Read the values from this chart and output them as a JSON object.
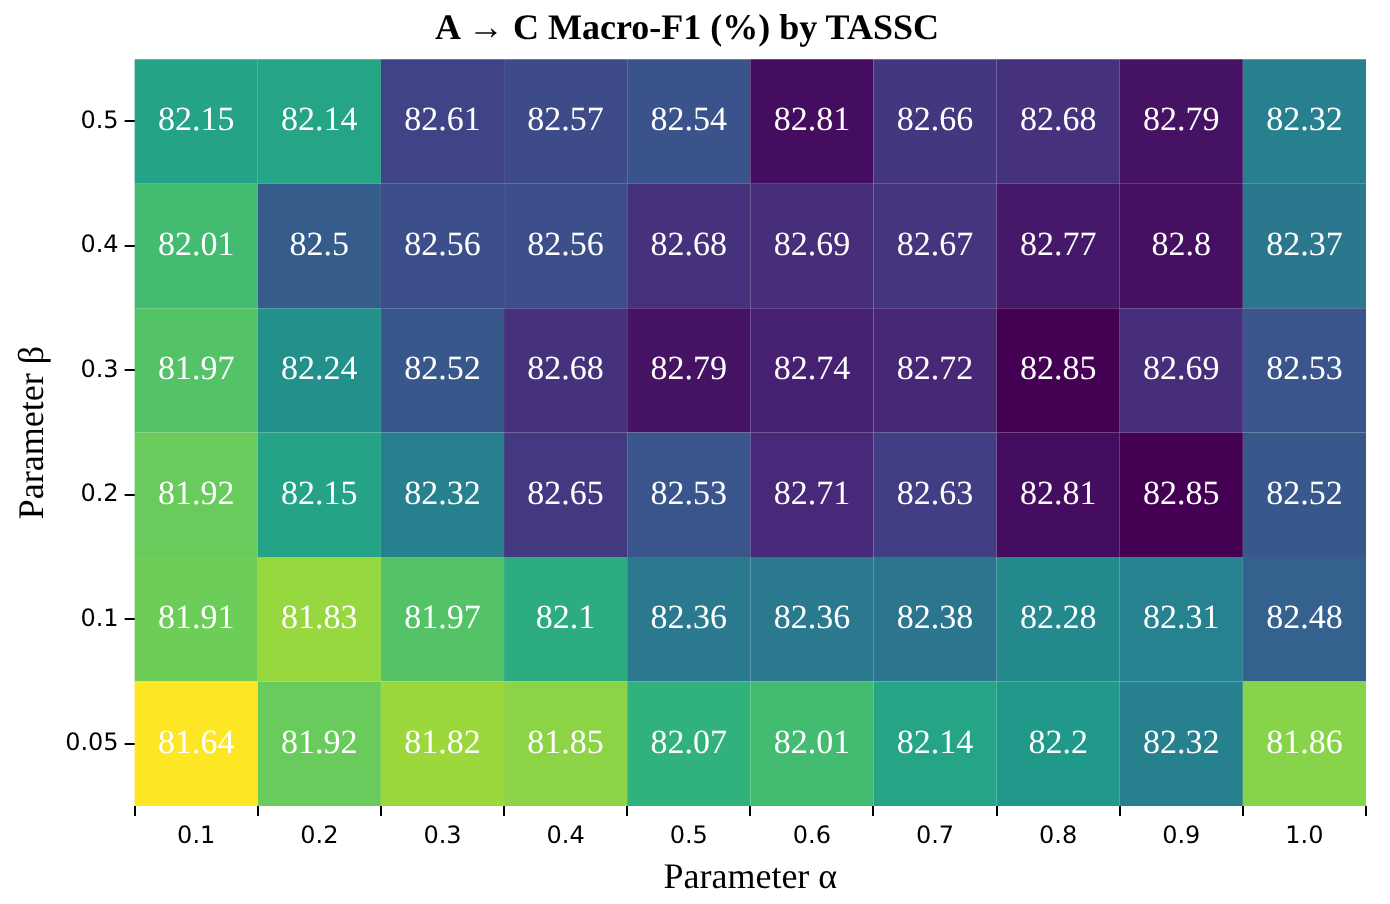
{
  "chart_data": {
    "type": "heatmap",
    "title": "A → C Macro-F1 (%) by TASSC",
    "xlabel": "Parameter α",
    "ylabel": "Parameter β",
    "categories": [
      "0.1",
      "0.2",
      "0.3",
      "0.4",
      "0.5",
      "0.6",
      "0.7",
      "0.8",
      "0.9",
      "1.0"
    ],
    "y_categories": [
      "0.5",
      "0.4",
      "0.3",
      "0.2",
      "0.1",
      "0.05"
    ],
    "cells": [
      [
        82.15,
        82.14,
        82.61,
        82.57,
        82.54,
        82.81,
        82.66,
        82.68,
        82.79,
        82.32
      ],
      [
        82.01,
        82.5,
        82.56,
        82.56,
        82.68,
        82.69,
        82.67,
        82.77,
        82.8,
        82.37
      ],
      [
        81.97,
        82.24,
        82.52,
        82.68,
        82.79,
        82.74,
        82.72,
        82.85,
        82.69,
        82.53
      ],
      [
        81.92,
        82.15,
        82.32,
        82.65,
        82.53,
        82.71,
        82.63,
        82.81,
        82.85,
        82.52
      ],
      [
        81.91,
        81.83,
        81.97,
        82.1,
        82.36,
        82.36,
        82.38,
        82.28,
        82.31,
        82.48
      ],
      [
        81.64,
        81.92,
        81.82,
        81.85,
        82.07,
        82.01,
        82.14,
        82.2,
        82.32,
        81.86
      ]
    ],
    "data_labels": true,
    "grid": false,
    "legend": false
  }
}
